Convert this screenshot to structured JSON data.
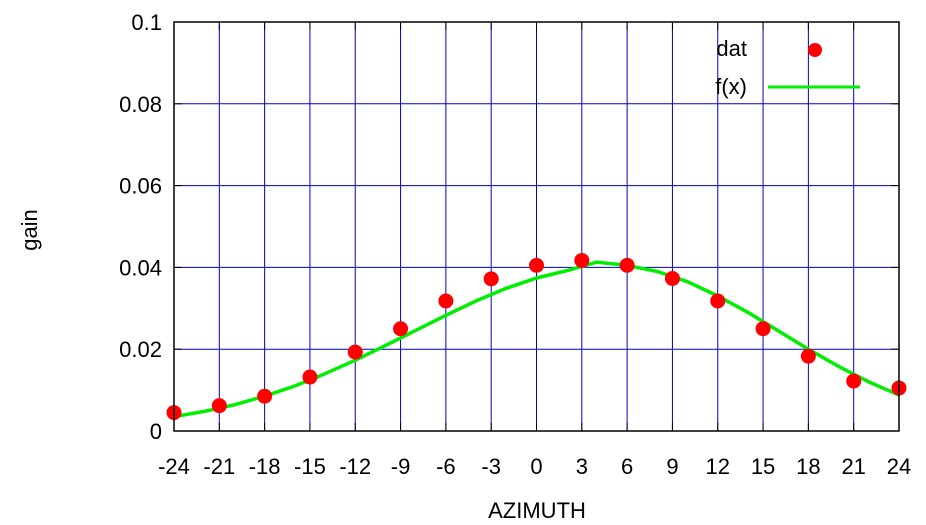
{
  "chart_data": {
    "type": "scatter",
    "xlabel": "AZIMUTH",
    "ylabel": "gain",
    "xlim": [
      -24,
      24
    ],
    "ylim": [
      0,
      0.1
    ],
    "grid": true,
    "legend_position": "top-right",
    "x_ticks": [
      -24,
      -21,
      -18,
      -15,
      -12,
      -9,
      -6,
      -3,
      0,
      3,
      6,
      9,
      12,
      15,
      18,
      21,
      24
    ],
    "x_tick_labels": [
      "-24",
      "-21",
      "-18",
      "-15",
      "-12",
      "-9",
      "-6",
      "-3",
      "0",
      "3",
      "6",
      "9",
      "12",
      "15",
      "18",
      "21",
      "24"
    ],
    "y_ticks": [
      0,
      0.02,
      0.04,
      0.06,
      0.08,
      0.1
    ],
    "y_tick_labels": [
      "0",
      "0.02",
      "0.04",
      "0.06",
      "0.08",
      "0.1"
    ],
    "colors": {
      "grid": "#0000cc",
      "dat": "#ff0000",
      "fit": "#00ee00",
      "frame": "#000000"
    },
    "series": [
      {
        "name": "dat",
        "kind": "points",
        "x": [
          -24,
          -21,
          -18,
          -15,
          -12,
          -9,
          -6,
          -3,
          0,
          3,
          6,
          9,
          12,
          15,
          18,
          21,
          24
        ],
        "y": [
          0.0045,
          0.0062,
          0.0085,
          0.0132,
          0.0193,
          0.025,
          0.0318,
          0.0372,
          0.0405,
          0.0417,
          0.0405,
          0.0373,
          0.0318,
          0.025,
          0.0183,
          0.0122,
          0.0105
        ]
      },
      {
        "name": "f(x)",
        "kind": "line",
        "x": [
          -24,
          -22,
          -20,
          -18,
          -16,
          -14,
          -12,
          -10,
          -8,
          -6,
          -4,
          -2,
          0,
          2,
          4,
          6,
          8,
          10,
          12,
          14,
          16,
          18,
          20,
          22,
          24
        ],
        "y": [
          0.0035,
          0.0048,
          0.0064,
          0.0085,
          0.011,
          0.014,
          0.0173,
          0.0209,
          0.0246,
          0.0283,
          0.0318,
          0.0349,
          0.0374,
          0.0392,
          0.0413,
          0.0405,
          0.039,
          0.0365,
          0.033,
          0.029,
          0.0245,
          0.02,
          0.0158,
          0.012,
          0.0088
        ]
      }
    ]
  }
}
